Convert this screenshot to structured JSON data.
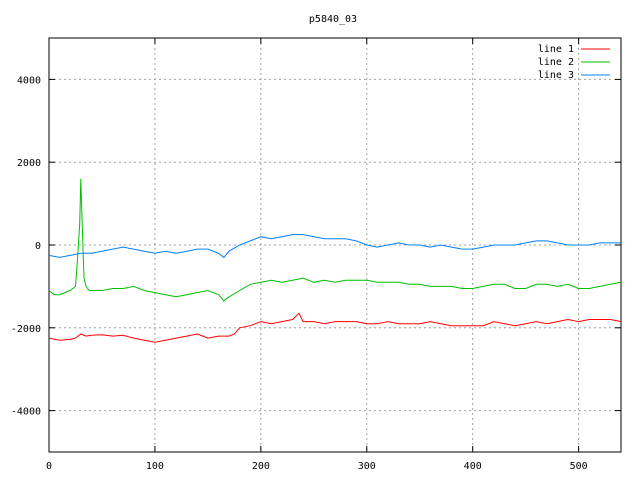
{
  "chart_data": {
    "type": "line",
    "title": "p5840_03",
    "xlabel": "",
    "ylabel": "",
    "xlim": [
      0,
      540
    ],
    "ylim": [
      -5000,
      5000
    ],
    "xticks": [
      0,
      100,
      200,
      300,
      400,
      500
    ],
    "yticks": [
      -4000,
      -2000,
      0,
      2000,
      4000
    ],
    "xtick_labels": [
      "0",
      "100",
      "200",
      "300",
      "400",
      "500"
    ],
    "ytick_labels": [
      "-4000",
      "-2000",
      "0",
      "2000",
      "4000"
    ],
    "grid": true,
    "legend_position": "top-right",
    "series": [
      {
        "name": "line 1",
        "color": "#ff0000",
        "x": [
          0,
          10,
          20,
          25,
          30,
          35,
          40,
          50,
          60,
          70,
          80,
          90,
          100,
          110,
          120,
          130,
          140,
          150,
          160,
          170,
          175,
          180,
          190,
          200,
          210,
          220,
          230,
          236,
          240,
          250,
          260,
          270,
          280,
          290,
          300,
          310,
          320,
          330,
          340,
          350,
          360,
          370,
          380,
          390,
          400,
          410,
          420,
          430,
          440,
          450,
          460,
          470,
          480,
          490,
          500,
          510,
          520,
          530,
          540
        ],
        "values": [
          -2250,
          -2300,
          -2280,
          -2250,
          -2150,
          -2200,
          -2180,
          -2170,
          -2200,
          -2180,
          -2250,
          -2300,
          -2350,
          -2300,
          -2250,
          -2200,
          -2150,
          -2250,
          -2200,
          -2200,
          -2150,
          -2000,
          -1950,
          -1850,
          -1900,
          -1850,
          -1800,
          -1650,
          -1850,
          -1850,
          -1900,
          -1850,
          -1850,
          -1850,
          -1900,
          -1900,
          -1850,
          -1900,
          -1900,
          -1900,
          -1850,
          -1900,
          -1950,
          -1950,
          -1950,
          -1950,
          -1850,
          -1900,
          -1950,
          -1900,
          -1850,
          -1900,
          -1850,
          -1800,
          -1850,
          -1800,
          -1800,
          -1800,
          -1850
        ]
      },
      {
        "name": "line 2",
        "color": "#00c000",
        "x": [
          0,
          5,
          10,
          15,
          20,
          25,
          27,
          29,
          30,
          31,
          32,
          33,
          35,
          38,
          40,
          50,
          60,
          70,
          80,
          90,
          100,
          110,
          120,
          130,
          140,
          150,
          160,
          165,
          170,
          180,
          190,
          200,
          210,
          220,
          230,
          240,
          250,
          260,
          270,
          280,
          290,
          300,
          310,
          320,
          330,
          340,
          350,
          360,
          370,
          380,
          390,
          400,
          410,
          420,
          430,
          440,
          450,
          460,
          470,
          480,
          490,
          500,
          510,
          520,
          530,
          540
        ],
        "values": [
          -1100,
          -1200,
          -1200,
          -1150,
          -1100,
          -1000,
          -300,
          500,
          1600,
          800,
          0,
          -800,
          -1000,
          -1100,
          -1100,
          -1100,
          -1050,
          -1050,
          -1000,
          -1100,
          -1150,
          -1200,
          -1250,
          -1200,
          -1150,
          -1100,
          -1200,
          -1350,
          -1250,
          -1100,
          -950,
          -900,
          -850,
          -900,
          -850,
          -800,
          -900,
          -850,
          -900,
          -850,
          -850,
          -850,
          -900,
          -900,
          -900,
          -950,
          -950,
          -1000,
          -1000,
          -1000,
          -1050,
          -1050,
          -1000,
          -950,
          -950,
          -1050,
          -1050,
          -950,
          -950,
          -1000,
          -950,
          -1050,
          -1050,
          -1000,
          -950,
          -900
        ]
      },
      {
        "name": "line 3",
        "color": "#0080ff",
        "x": [
          0,
          10,
          20,
          30,
          40,
          50,
          60,
          70,
          80,
          90,
          100,
          110,
          120,
          130,
          140,
          150,
          160,
          165,
          170,
          180,
          190,
          200,
          210,
          220,
          230,
          240,
          250,
          260,
          270,
          280,
          290,
          300,
          310,
          320,
          330,
          340,
          350,
          360,
          370,
          380,
          390,
          400,
          410,
          420,
          430,
          440,
          450,
          460,
          470,
          480,
          490,
          500,
          510,
          520,
          530,
          540
        ],
        "values": [
          -250,
          -300,
          -250,
          -200,
          -200,
          -150,
          -100,
          -50,
          -100,
          -150,
          -200,
          -150,
          -200,
          -150,
          -100,
          -100,
          -200,
          -300,
          -150,
          0,
          100,
          200,
          150,
          200,
          250,
          250,
          200,
          150,
          150,
          150,
          100,
          0,
          -50,
          0,
          50,
          0,
          0,
          -50,
          0,
          -50,
          -100,
          -100,
          -50,
          0,
          0,
          0,
          50,
          100,
          100,
          50,
          0,
          0,
          0,
          50,
          50,
          50
        ]
      }
    ]
  }
}
